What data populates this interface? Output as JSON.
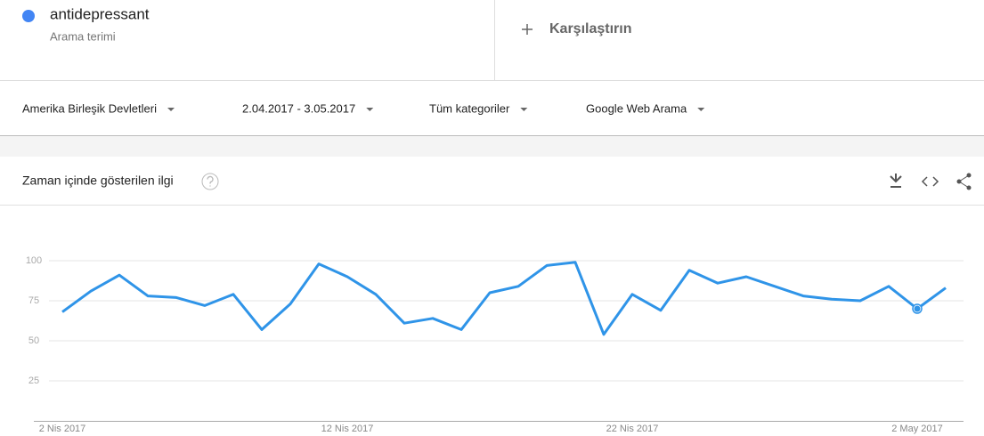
{
  "header": {
    "term": "antidepressant",
    "term_type": "Arama terimi",
    "compare": "Karşılaştırın"
  },
  "filters": [
    "Amerika Birleşik Devletleri",
    "2.04.2017 - 3.05.2017",
    "Tüm kategoriler",
    "Google Web Arama"
  ],
  "chart_data": {
    "type": "line",
    "title": "Zaman içinde gösterilen ilgi",
    "categories": [
      "2 Nis 2017",
      null,
      null,
      null,
      null,
      null,
      null,
      null,
      null,
      null,
      "12 Nis 2017",
      null,
      null,
      null,
      null,
      null,
      null,
      null,
      null,
      null,
      "22 Nis 2017",
      null,
      null,
      null,
      null,
      null,
      null,
      null,
      null,
      null,
      "2 May 2017",
      null
    ],
    "values": [
      68,
      81,
      91,
      78,
      77,
      72,
      79,
      57,
      73,
      98,
      90,
      79,
      61,
      64,
      57,
      80,
      84,
      97,
      99,
      54,
      79,
      69,
      94,
      86,
      90,
      84,
      78,
      76,
      75,
      84,
      70,
      83
    ],
    "color": "#2f94e8",
    "ylim": [
      0,
      100
    ],
    "yticks": [
      25,
      50,
      75,
      100
    ],
    "grid": true
  }
}
